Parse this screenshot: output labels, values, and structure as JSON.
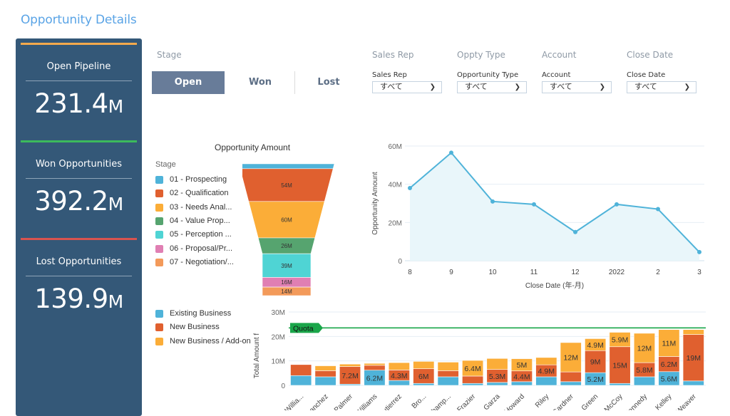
{
  "page_title": "Opportunity Details",
  "kpis": [
    {
      "label": "Open Pipeline",
      "value": "231.4",
      "unit": "M",
      "accent": "#f5a94c"
    },
    {
      "label": "Won Opportunities",
      "value": "392.2",
      "unit": "M",
      "accent": "#3cba5c"
    },
    {
      "label": "Lost Opportunities",
      "value": "139.9",
      "unit": "M",
      "accent": "#d9534f"
    }
  ],
  "filters": {
    "stage": {
      "title": "Stage",
      "options": [
        "Open",
        "Won",
        "Lost"
      ],
      "selected": "Open"
    },
    "dropdowns": [
      {
        "title": "Sales Rep",
        "label": "Sales Rep",
        "value": "すべて"
      },
      {
        "title": "Oppty Type",
        "label": "Opportunity Type",
        "value": "すべて"
      },
      {
        "title": "Account",
        "label": "Account",
        "value": "すべて"
      },
      {
        "title": "Close Date",
        "label": "Close Date",
        "value": "すべて"
      }
    ]
  },
  "colors": {
    "kpi_panel": "#345878",
    "stage_active": "#687c99",
    "line": "#4fb3d9",
    "quota": "#1aa64a"
  },
  "chart_data": [
    {
      "type": "funnel",
      "title": "Opportunity Amount",
      "legend_title": "Stage",
      "legend_position": "left",
      "categories": [
        "01 - Prospecting",
        "02 - Qualification",
        "03 - Needs Anal...",
        "04 - Value Prop...",
        "05 - Perception ...",
        "06 - Proposal/Pr...",
        "07 - Negotiation/..."
      ],
      "colors": [
        "#4fb3d9",
        "#e0602f",
        "#fbad38",
        "#56a46f",
        "#4fd4d4",
        "#e07fb3",
        "#f39a5a"
      ],
      "values": [
        8,
        54,
        60,
        26,
        39,
        16,
        14
      ],
      "labels": [
        "",
        "54M",
        "60M",
        "26M",
        "39M",
        "16M",
        "14M"
      ]
    },
    {
      "type": "area",
      "title": "",
      "x": [
        "8",
        "9",
        "10",
        "11",
        "12",
        "2022",
        "2",
        "3"
      ],
      "values": [
        38,
        56.5,
        31,
        29.5,
        15,
        29.5,
        27,
        4.5
      ],
      "xlabel": "Close Date (年-月)",
      "ylabel": "Opportunity Amount",
      "yticks": [
        "0",
        "20M",
        "40M",
        "60M"
      ],
      "ylim": [
        0,
        60
      ],
      "grid": true
    },
    {
      "type": "bar",
      "stacked": true,
      "ylabel": "Total Amount f",
      "yticks": [
        "0",
        "10M",
        "20M",
        "30M"
      ],
      "ylim": [
        0,
        30
      ],
      "legend_position": "left",
      "quota": {
        "label": "Quota",
        "value": 23.5
      },
      "categories": [
        "Willia...",
        "Sanchez",
        "Palmer",
        "Williams",
        "Gutierrez",
        "Bro...",
        "Champ...",
        "Frazier",
        "Garza",
        "Howard",
        "Riley",
        "Gardner",
        "Green",
        "McCoy",
        "Kennedy",
        "Kelley",
        "Weaver"
      ],
      "series": [
        {
          "name": "Existing Business",
          "color": "#4fb3d9",
          "values": [
            4.0,
            3.5,
            0.5,
            6.2,
            2.0,
            0.8,
            3.5,
            0.8,
            1.2,
            1.5,
            3.5,
            1.5,
            5.2,
            0.8,
            3.5,
            5.6,
            1.8
          ],
          "labels": [
            "",
            "",
            "",
            "6.2M",
            "",
            "",
            "",
            "",
            "",
            "",
            "",
            "",
            "5.2M",
            "",
            "",
            "5.6M",
            ""
          ]
        },
        {
          "name": "New Business",
          "color": "#e0602f",
          "values": [
            4.5,
            2.5,
            7.2,
            2.0,
            4.3,
            6.0,
            2.5,
            3.0,
            5.3,
            4.4,
            4.9,
            4.0,
            9.0,
            15.0,
            5.8,
            6.2,
            19.0
          ],
          "labels": [
            "",
            "",
            "7.2M",
            "",
            "4.3M",
            "6M",
            "",
            "",
            "5.3M",
            "4.4M",
            "4.9M",
            "",
            "9M",
            "15M",
            "5.8M",
            "6.2M",
            ""
          ]
        },
        {
          "name": "New Business / Add-on",
          "color": "#fbad38",
          "values": [
            0,
            2.0,
            1.0,
            0.8,
            3.0,
            3.0,
            3.5,
            6.4,
            4.5,
            5.0,
            3.0,
            12.0,
            4.9,
            5.9,
            12.0,
            11.0,
            2.0
          ],
          "labels": [
            "",
            "",
            "",
            "",
            "",
            "",
            "",
            "6.4M",
            "",
            "5M",
            "",
            "12M",
            "4.9M",
            "5.9M",
            "12M",
            "11M",
            ""
          ]
        }
      ],
      "overlay_labels": {
        "16": "19M"
      }
    }
  ]
}
